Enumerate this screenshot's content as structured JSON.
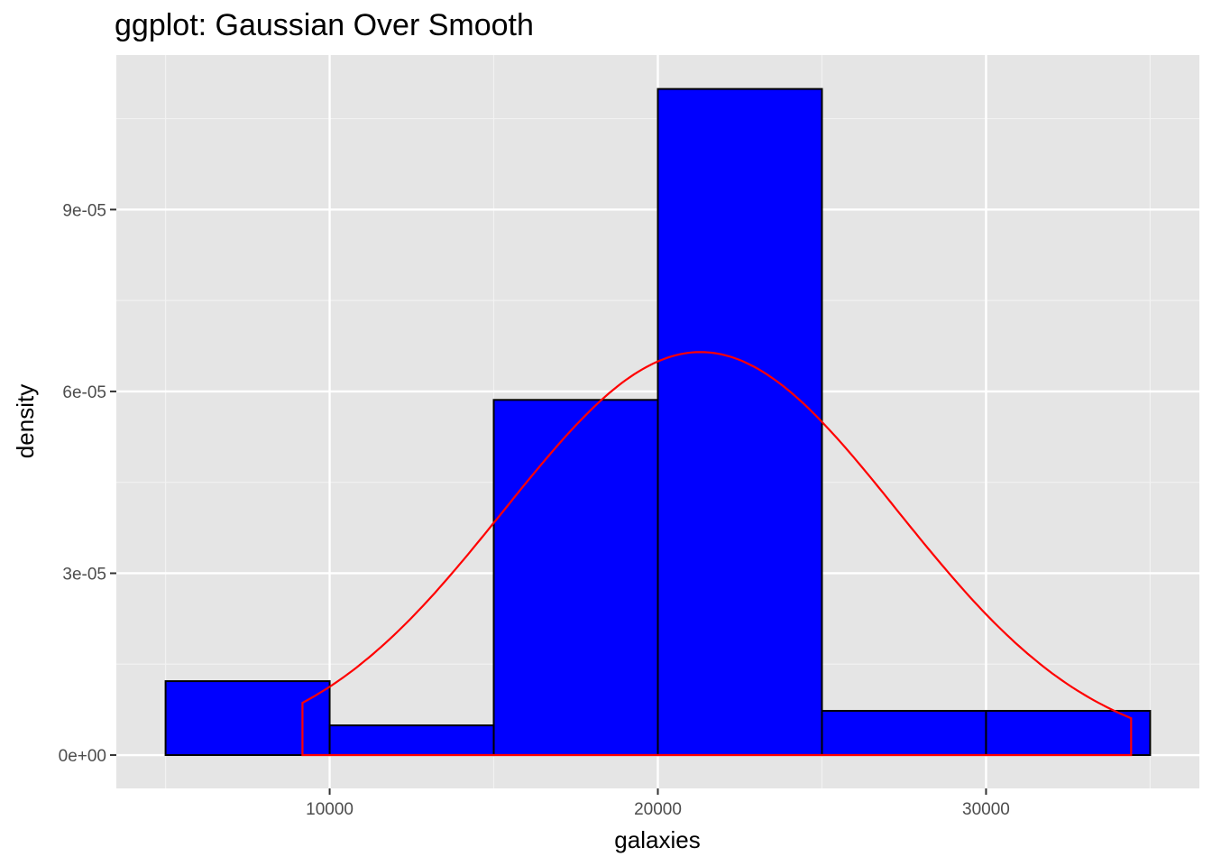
{
  "chart_data": {
    "type": "bar",
    "title": "ggplot: Gaussian Over Smooth",
    "xlabel": "galaxies",
    "ylabel": "density",
    "xlim": [
      3500,
      36500
    ],
    "ylim": [
      -5.5e-06,
      0.0001155
    ],
    "x_ticks": [
      10000,
      20000,
      30000
    ],
    "x_tick_labels": [
      "10000",
      "20000",
      "30000"
    ],
    "x_minor_ticks": [
      5000,
      15000,
      25000,
      35000
    ],
    "y_ticks": [
      0,
      3e-05,
      6e-05,
      9e-05
    ],
    "y_tick_labels": [
      "0e+00",
      "3e-05",
      "6e-05",
      "9e-05"
    ],
    "y_minor_ticks": [
      1.5e-05,
      4.5e-05,
      7.5e-05,
      0.000105
    ],
    "grid": true,
    "histogram": {
      "fill": "#0000ff",
      "outline": "#000000",
      "bins": [
        {
          "x0": 5000,
          "x1": 10000,
          "density": 1.22e-05
        },
        {
          "x0": 10000,
          "x1": 15000,
          "density": 4.9e-06
        },
        {
          "x0": 15000,
          "x1": 20000,
          "density": 5.86e-05
        },
        {
          "x0": 20000,
          "x1": 25000,
          "density": 0.0001099
        },
        {
          "x0": 25000,
          "x1": 30000,
          "density": 7.3e-06
        },
        {
          "x0": 30000,
          "x1": 35000,
          "density": 7.3e-06
        }
      ]
    },
    "density_curve": {
      "type": "line",
      "kernel": "gaussian",
      "color": "#ff0000",
      "x_range": [
        9172,
        34421
      ],
      "mean": 21300,
      "sd": 6000
    }
  }
}
